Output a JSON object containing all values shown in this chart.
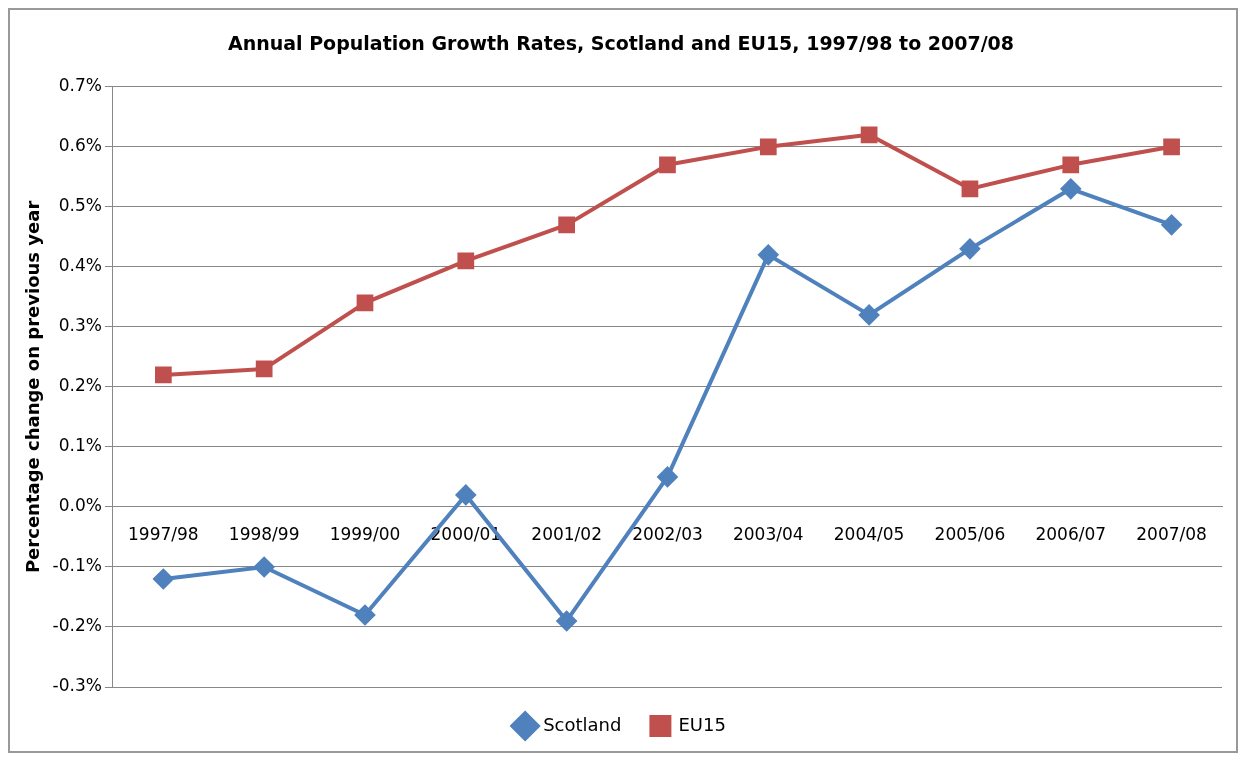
{
  "chart_data": {
    "type": "line",
    "title": "Annual Population Growth Rates, Scotland and EU15, 1997/98 to 2007/08",
    "ylabel": "Percentage change on previous year",
    "categories": [
      "1997/98",
      "1998/99",
      "1999/00",
      "2000/01",
      "2001/02",
      "2002/03",
      "2003/04",
      "2004/05",
      "2005/06",
      "2006/07",
      "2007/08"
    ],
    "series": [
      {
        "name": "Scotland",
        "color": "#4f81bd",
        "marker": "diamond",
        "values": [
          -0.12,
          -0.1,
          -0.18,
          0.02,
          -0.19,
          0.05,
          0.42,
          0.32,
          0.43,
          0.53,
          0.47
        ]
      },
      {
        "name": "EU15",
        "color": "#c0504d",
        "marker": "square",
        "values": [
          0.22,
          0.23,
          0.34,
          0.41,
          0.47,
          0.57,
          0.6,
          0.62,
          0.53,
          0.57,
          0.6
        ]
      }
    ],
    "ylim": [
      -0.3,
      0.7
    ],
    "yticks": [
      {
        "value": -0.3,
        "label": "-0.3%"
      },
      {
        "value": -0.2,
        "label": "-0.2%"
      },
      {
        "value": -0.1,
        "label": "-0.1%"
      },
      {
        "value": 0,
        "label": "0.0%"
      },
      {
        "value": 0.1,
        "label": "0.1%"
      },
      {
        "value": 0.2,
        "label": "0.2%"
      },
      {
        "value": 0.3,
        "label": "0.3%"
      },
      {
        "value": 0.4,
        "label": "0.4%"
      },
      {
        "value": 0.5,
        "label": "0.5%"
      },
      {
        "value": 0.6,
        "label": "0.6%"
      },
      {
        "value": 0.7,
        "label": "0.7%"
      }
    ],
    "grid": "y",
    "legend": "bottom",
    "line_style": "solid"
  }
}
